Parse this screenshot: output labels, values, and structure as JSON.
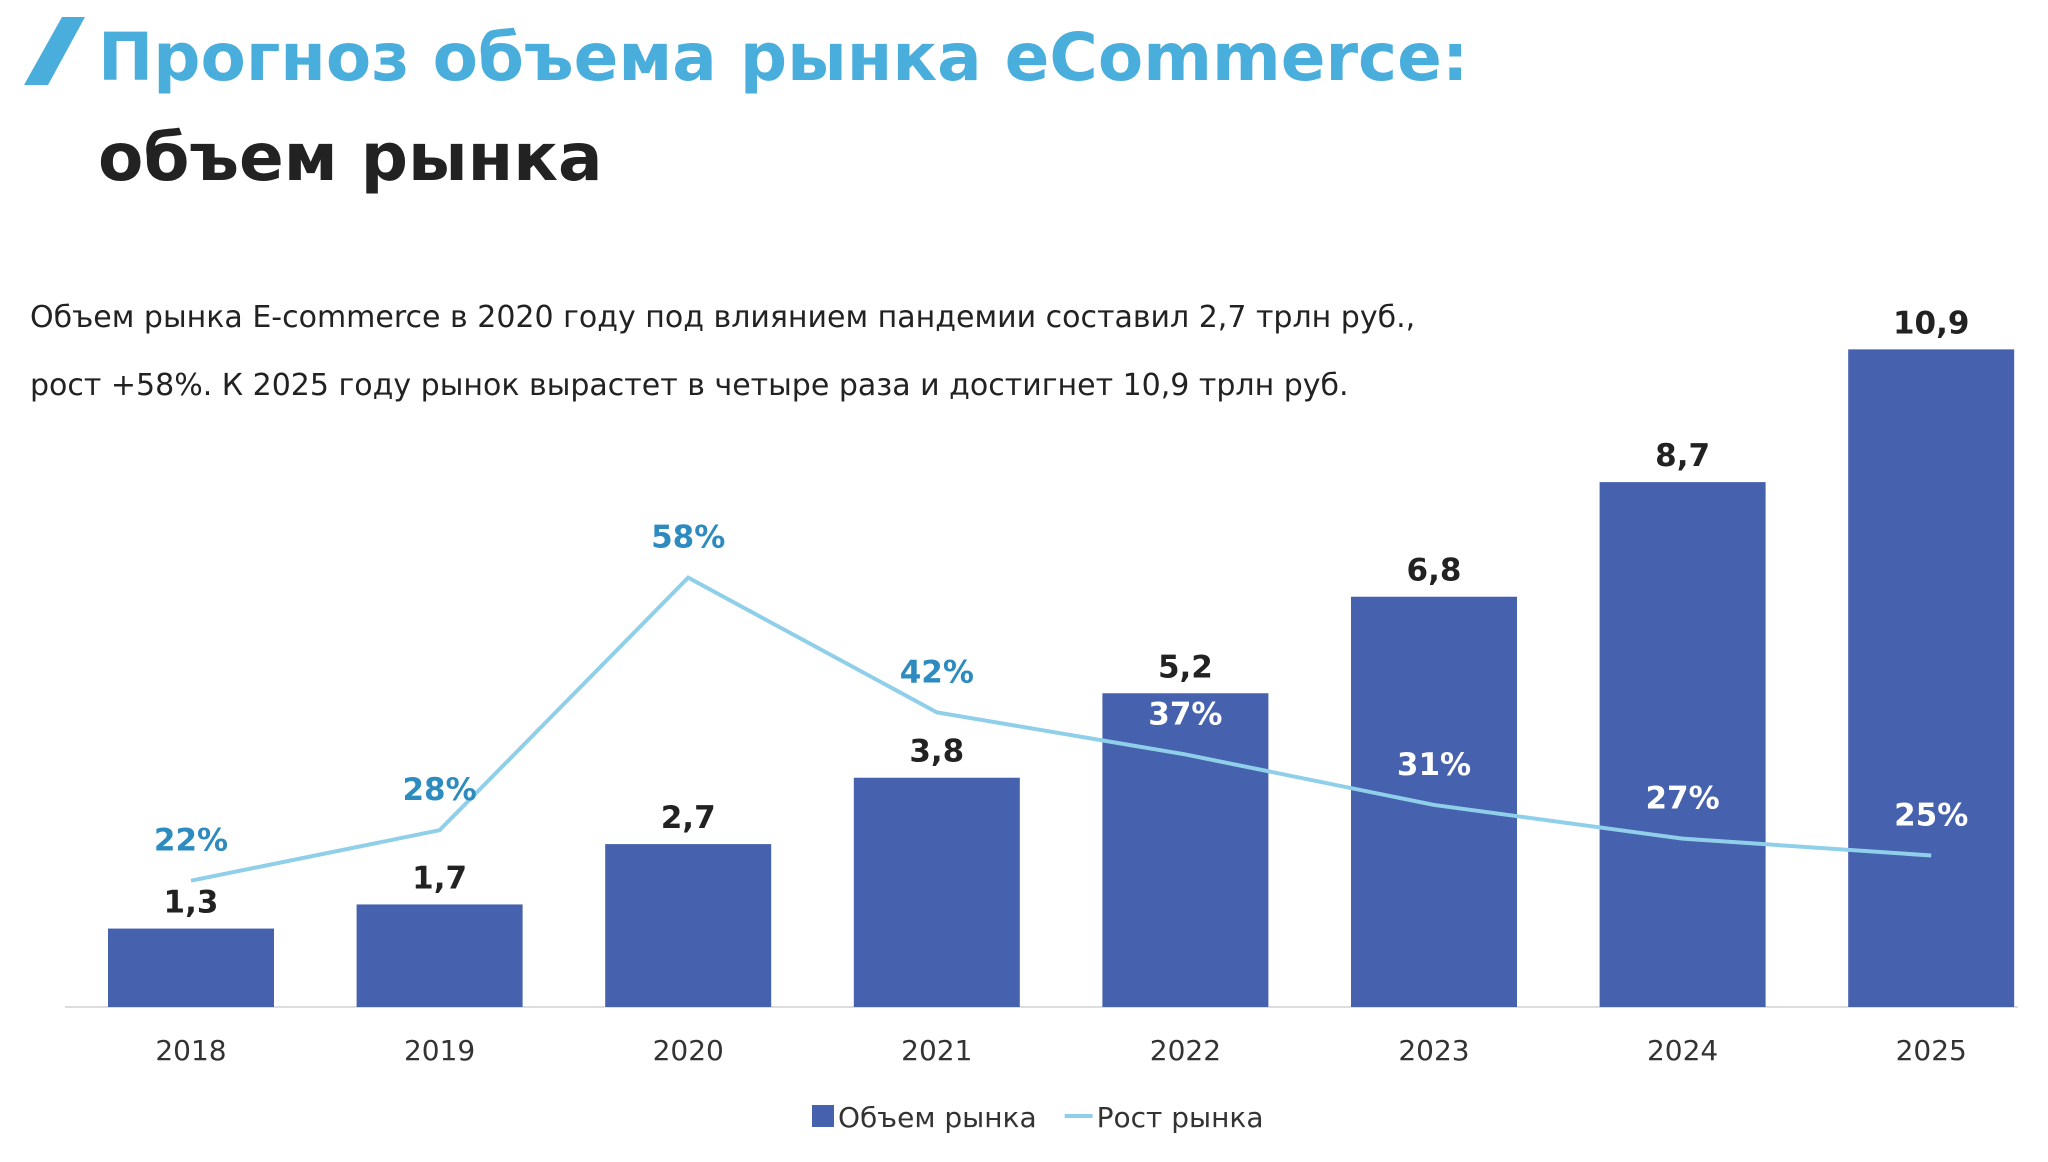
{
  "chart_data": {
    "type": "combo",
    "title": "Прогноз объема рынка eCommerce:",
    "subtitle": "объем рынка",
    "description": [
      "Объем рынка E-commerce в 2020 году под влиянием пандемии составил 2,7 трлн руб.,",
      "рост +58%. К 2025 году рынок вырастет в четыре раза и достигнет 10,9 трлн руб."
    ],
    "categories": [
      "2018",
      "2019",
      "2020",
      "2021",
      "2022",
      "2023",
      "2024",
      "2025"
    ],
    "series": [
      {
        "name": "Объем рынка",
        "type": "bar",
        "color": "#4661ad",
        "values": [
          1.3,
          1.7,
          2.7,
          3.8,
          5.2,
          6.8,
          8.7,
          10.9
        ],
        "value_labels": [
          "1,3",
          "1,7",
          "2,7",
          "3,8",
          "5,2",
          "6,8",
          "8,7",
          "10,9"
        ]
      },
      {
        "name": "Рост рынка",
        "type": "line",
        "axis": "y2",
        "color": "#8fcfea",
        "values": [
          22,
          28,
          58,
          42,
          37,
          31,
          27,
          25
        ],
        "value_labels": [
          "22%",
          "28%",
          "58%",
          "42%",
          "37%",
          "31%",
          "27%",
          "25%"
        ]
      }
    ],
    "ylim": [
      0,
      12
    ],
    "y2lim": [
      7,
      93
    ],
    "legend": "bottom"
  }
}
